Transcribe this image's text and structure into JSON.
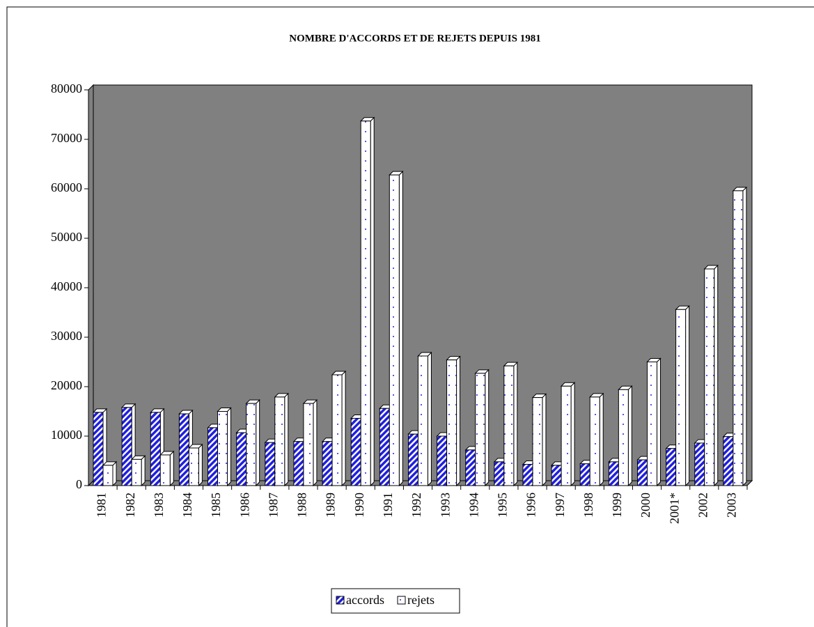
{
  "chart_data": {
    "type": "bar3d",
    "title": "NOMBRE D'ACCORDS ET DE REJETS DEPUIS 1981",
    "categories": [
      "1981",
      "1982",
      "1983",
      "1984",
      "1985",
      "1986",
      "1987",
      "1988",
      "1989",
      "1990",
      "1991",
      "1992",
      "1993",
      "1994",
      "1995",
      "1996",
      "1997",
      "1998",
      "1999",
      "2000",
      "2001*",
      "2002",
      "2003"
    ],
    "series": [
      {
        "name": "accords",
        "color": "#1f1fe0",
        "values": [
          14800,
          15800,
          14800,
          14500,
          11700,
          10700,
          8700,
          8900,
          8900,
          13600,
          15600,
          10400,
          10000,
          7200,
          4800,
          4300,
          4100,
          4400,
          4800,
          5200,
          7500,
          8600,
          9900
        ]
      },
      {
        "name": "rejets",
        "color": "#ffffff",
        "values": [
          4100,
          5300,
          6200,
          7600,
          15000,
          16600,
          17900,
          16600,
          22400,
          73700,
          62800,
          26200,
          25400,
          22700,
          24200,
          17800,
          20100,
          17900,
          19400,
          25000,
          35600,
          43800,
          59600
        ]
      }
    ],
    "ylim": [
      0,
      80000
    ],
    "yticks": [
      0,
      10000,
      20000,
      30000,
      40000,
      50000,
      60000,
      70000,
      80000
    ]
  }
}
